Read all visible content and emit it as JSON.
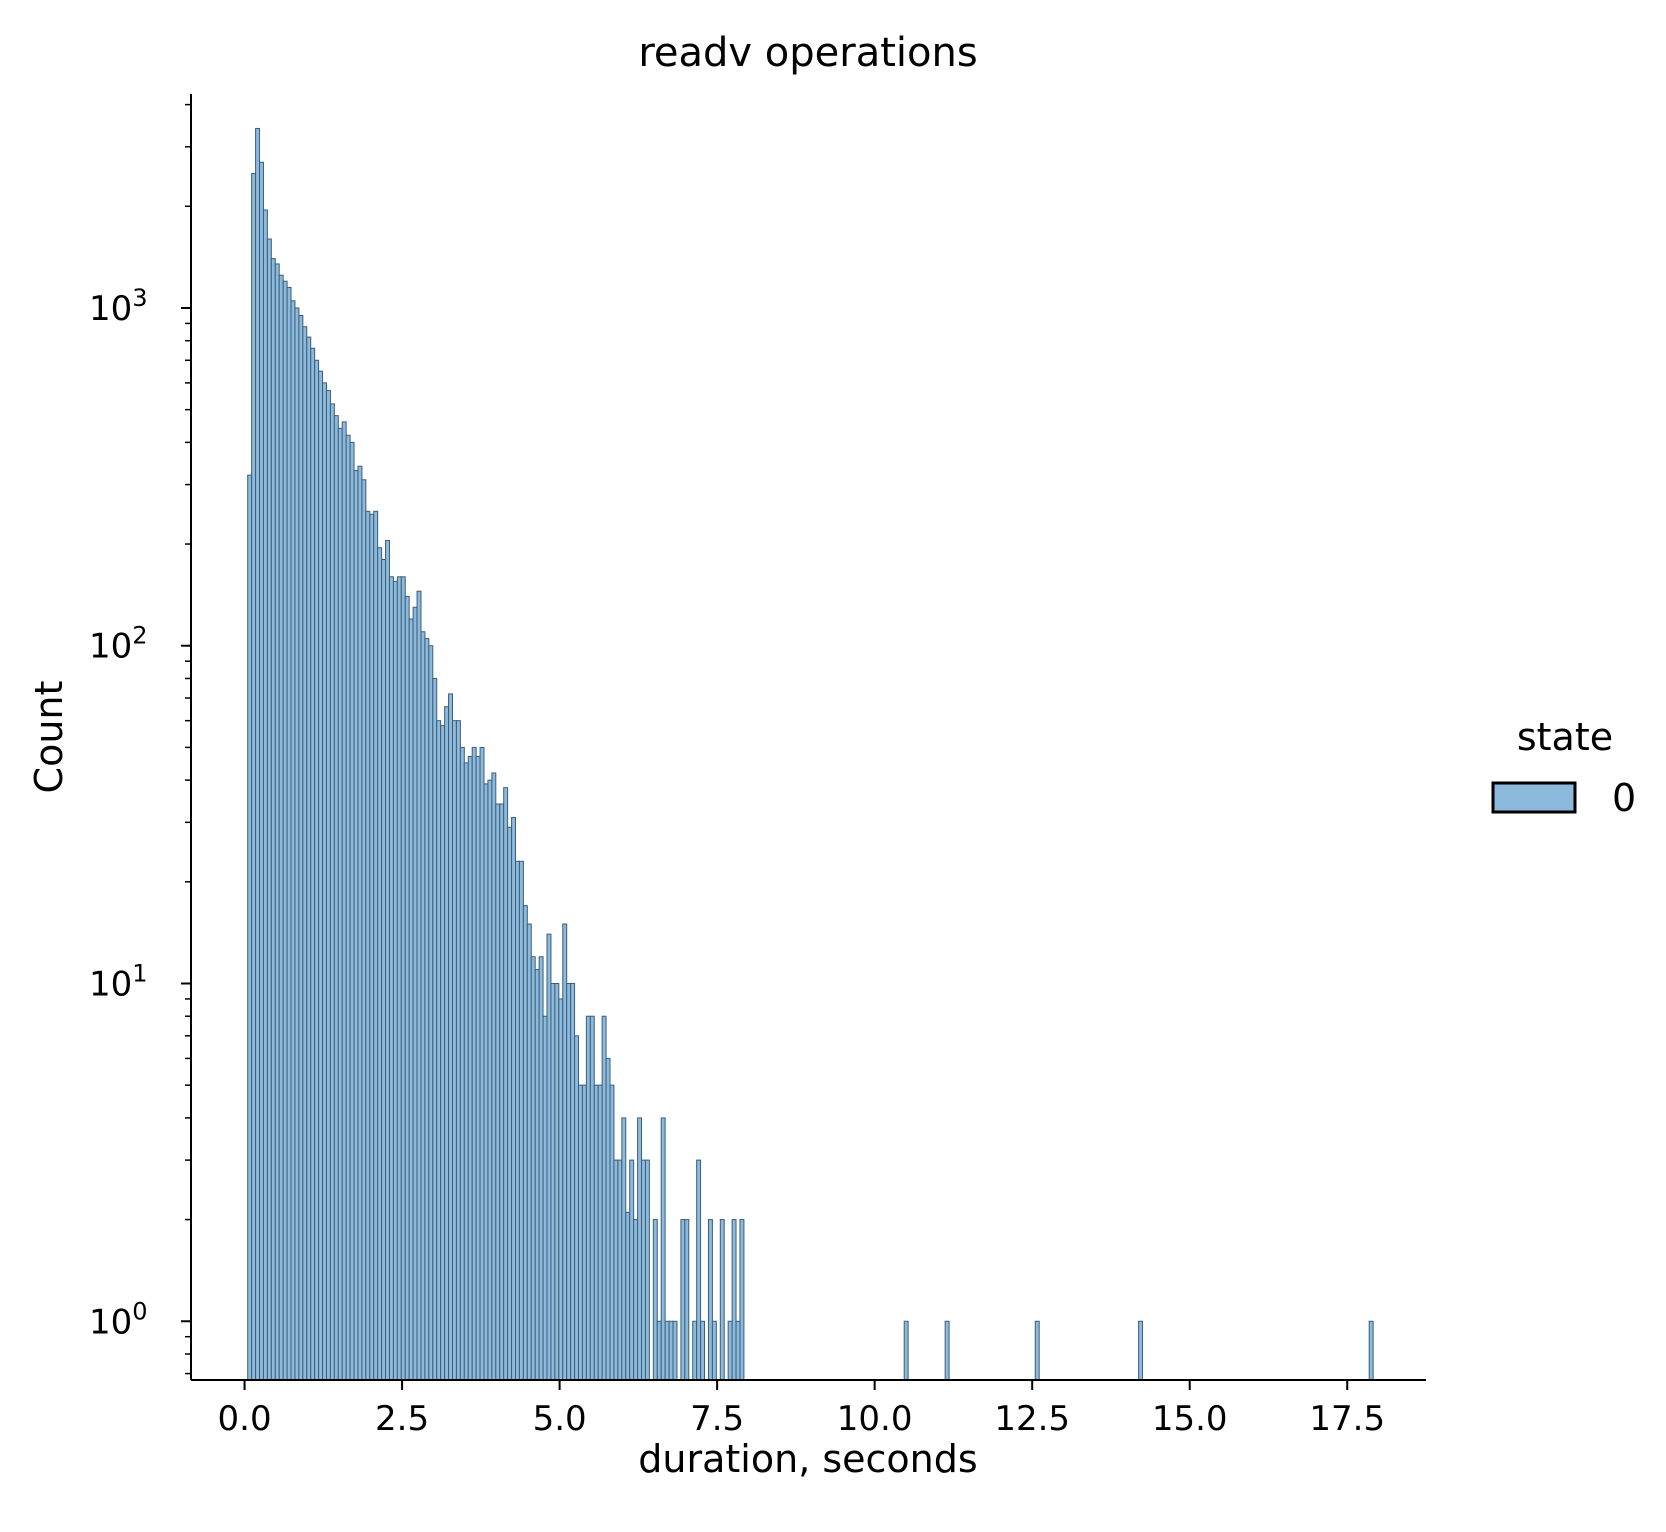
{
  "chart_data": {
    "type": "bar",
    "title": "readv operations",
    "xlabel": "duration, seconds",
    "ylabel": "Count",
    "xlim": [
      -0.85,
      18.75
    ],
    "ylim": [
      0.67,
      4300
    ],
    "yscale": "log",
    "x_ticks": [
      0.0,
      2.5,
      5.0,
      7.5,
      10.0,
      12.5,
      15.0,
      17.5
    ],
    "x_tick_labels": [
      "0.0",
      "2.5",
      "5.0",
      "7.5",
      "10.0",
      "12.5",
      "15.0",
      "17.5"
    ],
    "y_ticks": [
      {
        "value": 1,
        "base": "10",
        "exp": "0"
      },
      {
        "value": 10,
        "base": "10",
        "exp": "1"
      },
      {
        "value": 100,
        "base": "10",
        "exp": "2"
      },
      {
        "value": 1000,
        "base": "10",
        "exp": "3"
      }
    ],
    "grid": false,
    "legend": {
      "title": "state",
      "position": "right",
      "entries": [
        {
          "label": "0",
          "color": "#8db9dc"
        }
      ]
    },
    "bin_start": 0.05,
    "bin_width": 0.0625,
    "series": [
      {
        "name": "0",
        "values": [
          320,
          2500,
          3400,
          2700,
          1950,
          1600,
          1400,
          1350,
          1250,
          1200,
          1150,
          1050,
          1000,
          950,
          880,
          820,
          760,
          700,
          650,
          600,
          570,
          520,
          480,
          440,
          460,
          420,
          400,
          330,
          340,
          310,
          250,
          245,
          250,
          195,
          180,
          205,
          160,
          155,
          160,
          160,
          140,
          120,
          130,
          145,
          110,
          105,
          100,
          80,
          60,
          58,
          66,
          72,
          60,
          60,
          50,
          45,
          47,
          50,
          47,
          50,
          39,
          40,
          42,
          34,
          34,
          38,
          29,
          31,
          23,
          23,
          17,
          15,
          12,
          11,
          12,
          8,
          14,
          10,
          10,
          9,
          15,
          10,
          10,
          7,
          5,
          5,
          8,
          8,
          5,
          5,
          8,
          6,
          5,
          3,
          3,
          4,
          2.1,
          3,
          2,
          4,
          3,
          3,
          0,
          2,
          1,
          4,
          1,
          1,
          1,
          0,
          2,
          2,
          0,
          1,
          3,
          1,
          0,
          2,
          1,
          0,
          2,
          0,
          1,
          2,
          1,
          2
        ]
      }
    ],
    "extra_bars": [
      {
        "x": 10.5,
        "value": 1
      },
      {
        "x": 11.15,
        "value": 1
      },
      {
        "x": 12.58,
        "value": 1
      },
      {
        "x": 14.22,
        "value": 1
      },
      {
        "x": 17.88,
        "value": 1
      }
    ],
    "colors": {
      "bar_fill": "#8db9dc",
      "bar_edge": "#3b5f78",
      "axis": "#000000"
    }
  }
}
